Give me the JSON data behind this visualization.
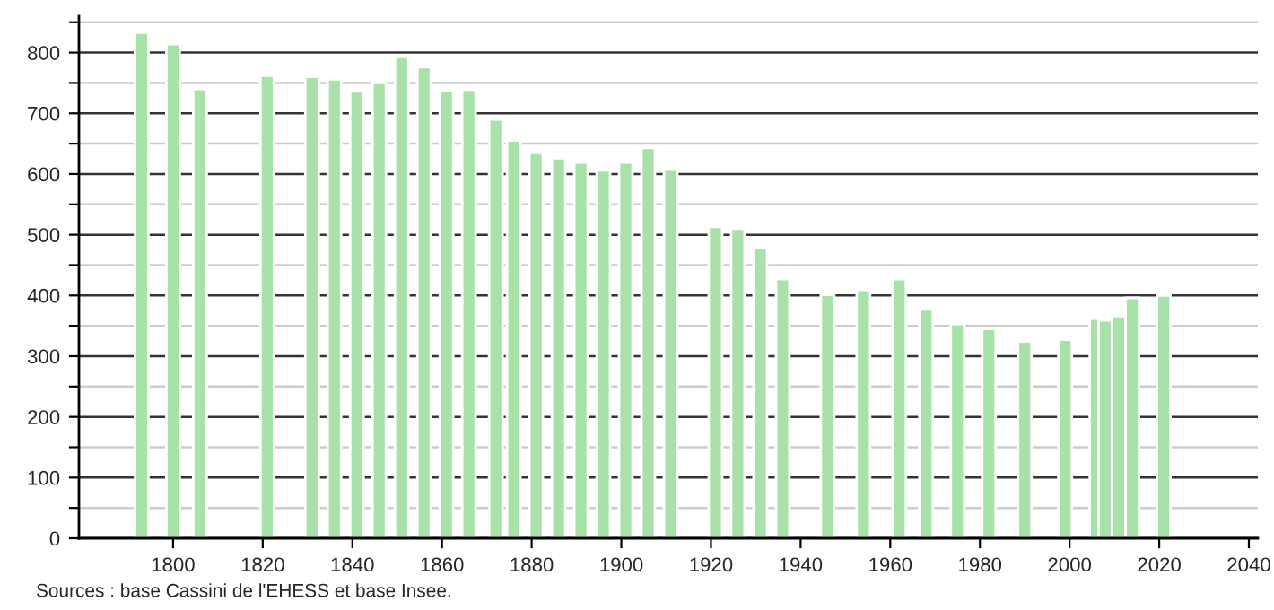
{
  "chart_data": {
    "type": "bar",
    "color": "#a8e2a8",
    "x": [
      1793,
      1800,
      1806,
      1821,
      1831,
      1836,
      1841,
      1846,
      1851,
      1856,
      1861,
      1866,
      1872,
      1876,
      1881,
      1886,
      1891,
      1896,
      1901,
      1906,
      1911,
      1921,
      1926,
      1931,
      1936,
      1946,
      1954,
      1962,
      1968,
      1975,
      1982,
      1990,
      1999,
      2006,
      2008,
      2011,
      2014,
      2021
    ],
    "values": [
      833,
      814,
      740,
      762,
      760,
      756,
      736,
      750,
      793,
      776,
      737,
      739,
      690,
      655,
      635,
      626,
      619,
      606,
      619,
      643,
      607,
      513,
      510,
      478,
      427,
      401,
      409,
      427,
      377,
      353,
      345,
      324,
      327,
      362,
      359,
      366,
      396,
      400
    ],
    "xlim": [
      1779,
      2042
    ],
    "xticks": [
      1800,
      1820,
      1840,
      1860,
      1880,
      1900,
      1920,
      1940,
      1960,
      1980,
      2000,
      2020,
      2040
    ],
    "ylim": [
      0,
      860
    ],
    "yticks": [
      0,
      {
        "value": 50,
        "label": null
      },
      100,
      {
        "value": 150,
        "label": null
      },
      200,
      {
        "value": 250,
        "label": null
      },
      300,
      {
        "value": 350,
        "label": null
      },
      400,
      {
        "value": 450,
        "label": null
      },
      500,
      {
        "value": 550,
        "label": null
      },
      600,
      {
        "value": 650,
        "label": null
      },
      700,
      {
        "value": 750,
        "label": null
      },
      800,
      {
        "value": 850,
        "label": null
      }
    ],
    "grid": "y",
    "annotations": [
      "Sources : base Cassini de l'EHESS et base Insee."
    ]
  }
}
